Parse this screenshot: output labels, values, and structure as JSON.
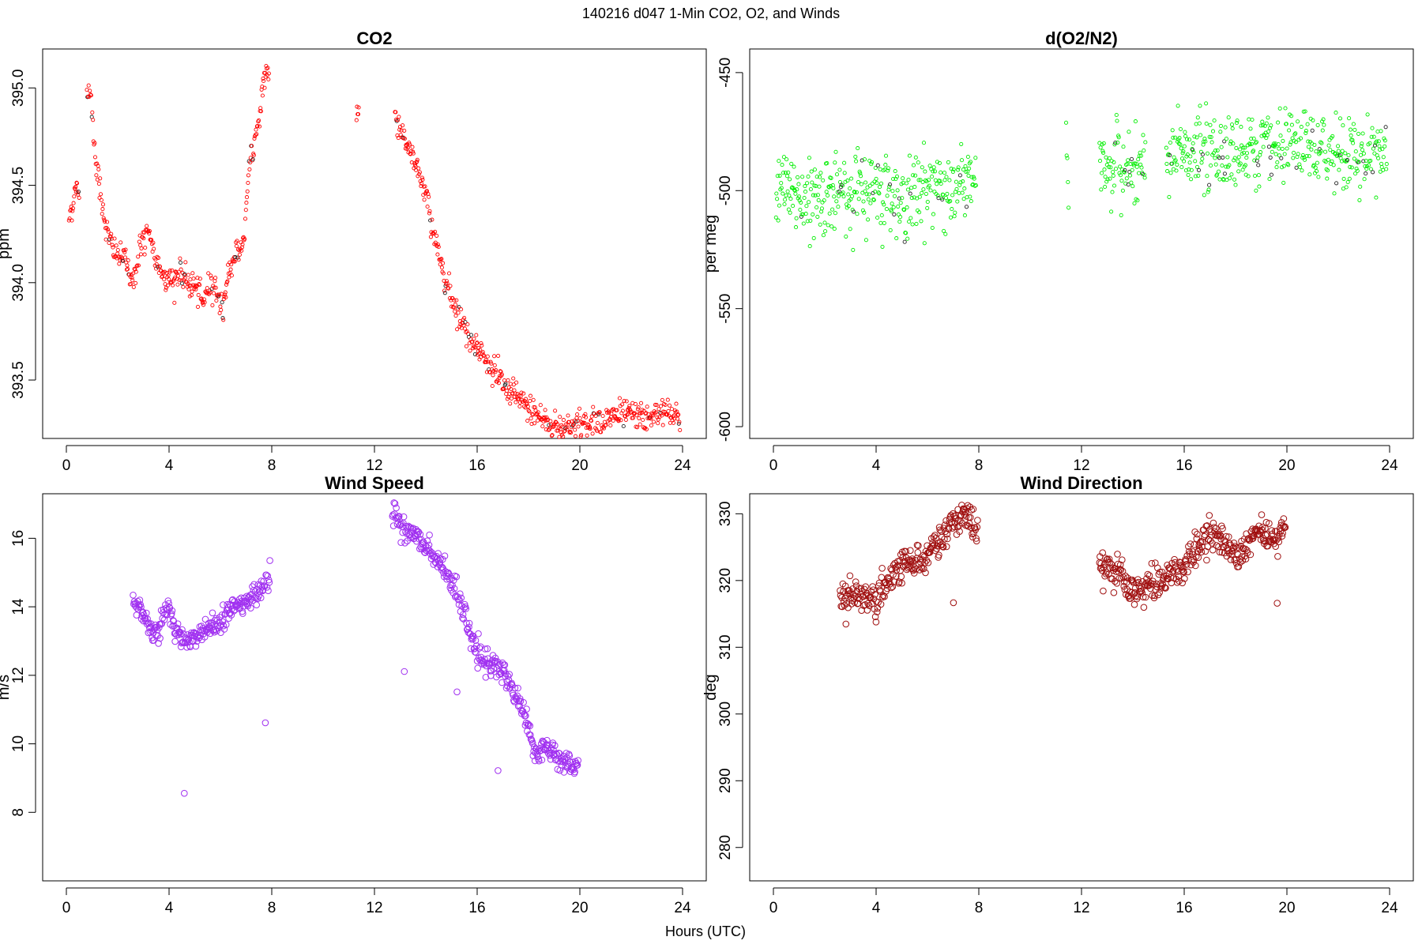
{
  "figure": {
    "title": "140216   d047   1-Min CO2, O2, and Winds",
    "shared_xlabel": "Hours (UTC)"
  },
  "chart_data": [
    {
      "id": "co2",
      "type": "scatter",
      "title": "CO2",
      "xlabel": "",
      "ylabel": "ppm",
      "xlim": [
        0,
        24
      ],
      "ylim": [
        393.2,
        395.2
      ],
      "xticks": [
        0,
        4,
        8,
        12,
        16,
        20,
        24
      ],
      "yticks": [
        393.5,
        394.0,
        394.5,
        395.0
      ],
      "ytick_labels": [
        "393.5",
        "394.0",
        "394.5",
        "395.0"
      ],
      "marker_color": "#ff0000",
      "marker_size": "small",
      "series": [
        {
          "segments": [
            {
              "start": 0.1,
              "end": 0.5,
              "pts": [
                [
                  0.1,
                  394.33
                ],
                [
                  0.2,
                  394.38
                ],
                [
                  0.3,
                  394.45
                ],
                [
                  0.4,
                  394.47
                ],
                [
                  0.5,
                  394.48
                ]
              ]
            },
            {
              "start": 0.8,
              "end": 7.9,
              "pts": [
                [
                  0.8,
                  394.95
                ],
                [
                  0.9,
                  395.02
                ],
                [
                  1.0,
                  394.88
                ],
                [
                  1.1,
                  394.7
                ],
                [
                  1.2,
                  394.58
                ],
                [
                  1.4,
                  394.4
                ],
                [
                  1.6,
                  394.25
                ],
                [
                  1.8,
                  394.18
                ],
                [
                  2.0,
                  394.14
                ],
                [
                  2.3,
                  394.12
                ],
                [
                  2.6,
                  394.0
                ],
                [
                  2.9,
                  394.2
                ],
                [
                  3.2,
                  394.25
                ],
                [
                  3.5,
                  394.1
                ],
                [
                  3.8,
                  394.05
                ],
                [
                  4.1,
                  394.0
                ],
                [
                  4.4,
                  394.05
                ],
                [
                  4.7,
                  394.0
                ],
                [
                  5.0,
                  393.98
                ],
                [
                  5.3,
                  393.9
                ],
                [
                  5.6,
                  394.0
                ],
                [
                  5.9,
                  393.95
                ],
                [
                  6.1,
                  393.85
                ],
                [
                  6.3,
                  394.05
                ],
                [
                  6.6,
                  394.15
                ],
                [
                  6.9,
                  394.2
                ],
                [
                  7.1,
                  394.55
                ],
                [
                  7.3,
                  394.7
                ],
                [
                  7.5,
                  394.85
                ],
                [
                  7.7,
                  395.05
                ],
                [
                  7.9,
                  395.1
                ]
              ]
            },
            {
              "start": 11.3,
              "end": 11.4,
              "pts": [
                [
                  11.3,
                  394.85
                ],
                [
                  11.4,
                  394.9
                ]
              ]
            },
            {
              "start": 12.8,
              "end": 23.9,
              "pts": [
                [
                  12.8,
                  394.85
                ],
                [
                  13.0,
                  394.8
                ],
                [
                  13.3,
                  394.7
                ],
                [
                  13.6,
                  394.6
                ],
                [
                  13.9,
                  394.5
                ],
                [
                  14.1,
                  394.4
                ],
                [
                  14.3,
                  394.25
                ],
                [
                  14.5,
                  394.15
                ],
                [
                  14.8,
                  394.0
                ],
                [
                  15.1,
                  393.9
                ],
                [
                  15.4,
                  393.8
                ],
                [
                  15.7,
                  393.72
                ],
                [
                  16.0,
                  393.68
                ],
                [
                  16.3,
                  393.6
                ],
                [
                  16.6,
                  393.55
                ],
                [
                  16.9,
                  393.5
                ],
                [
                  17.2,
                  393.44
                ],
                [
                  17.5,
                  393.42
                ],
                [
                  17.8,
                  393.38
                ],
                [
                  18.1,
                  393.35
                ],
                [
                  18.4,
                  393.32
                ],
                [
                  18.7,
                  393.28
                ],
                [
                  19.0,
                  393.27
                ],
                [
                  19.3,
                  393.25
                ],
                [
                  19.6,
                  393.27
                ],
                [
                  19.9,
                  393.28
                ],
                [
                  20.2,
                  393.28
                ],
                [
                  20.5,
                  393.28
                ],
                [
                  20.8,
                  393.3
                ],
                [
                  21.1,
                  393.3
                ],
                [
                  21.4,
                  393.32
                ],
                [
                  21.7,
                  393.33
                ],
                [
                  22.0,
                  393.33
                ],
                [
                  22.3,
                  393.32
                ],
                [
                  22.6,
                  393.3
                ],
                [
                  22.9,
                  393.32
                ],
                [
                  23.2,
                  393.35
                ],
                [
                  23.5,
                  393.32
                ],
                [
                  23.8,
                  393.3
                ],
                [
                  23.9,
                  393.27
                ]
              ]
            }
          ]
        }
      ]
    },
    {
      "id": "o2",
      "type": "scatter",
      "title": "d(O2/N2)",
      "xlabel": "",
      "ylabel": "per meg",
      "xlim": [
        0,
        24
      ],
      "ylim": [
        -605,
        -440
      ],
      "xticks": [
        0,
        4,
        8,
        12,
        16,
        20,
        24
      ],
      "yticks": [
        -600,
        -550,
        -500,
        -450
      ],
      "ytick_labels": [
        "-600",
        "-550",
        "-500",
        "-450"
      ],
      "marker_color": "#00ee00",
      "marker_size": "small",
      "series": [
        {
          "segments": [
            {
              "start": 0.1,
              "end": 7.9,
              "pts": [
                [
                  0.1,
                  -500
                ],
                [
                  1.0,
                  -503
                ],
                [
                  2.0,
                  -502
                ],
                [
                  3.0,
                  -500
                ],
                [
                  4.0,
                  -500
                ],
                [
                  5.0,
                  -505
                ],
                [
                  6.0,
                  -498
                ],
                [
                  7.0,
                  -500
                ],
                [
                  7.9,
                  -495
                ]
              ]
            },
            {
              "start": 11.4,
              "end": 11.5,
              "pts": [
                [
                  11.4,
                  -492
                ],
                [
                  11.5,
                  -488
                ]
              ]
            },
            {
              "start": 12.7,
              "end": 14.5,
              "pts": [
                [
                  12.7,
                  -488
                ],
                [
                  13.5,
                  -490
                ],
                [
                  14.0,
                  -495
                ],
                [
                  14.5,
                  -490
                ]
              ]
            },
            {
              "start": 15.3,
              "end": 23.9,
              "pts": [
                [
                  15.3,
                  -486
                ],
                [
                  16.0,
                  -484
                ],
                [
                  17.0,
                  -484
                ],
                [
                  18.0,
                  -483
                ],
                [
                  19.0,
                  -481
                ],
                [
                  20.0,
                  -482
                ],
                [
                  21.0,
                  -483
                ],
                [
                  22.0,
                  -484
                ],
                [
                  23.0,
                  -485
                ],
                [
                  23.9,
                  -483
                ]
              ]
            }
          ]
        }
      ]
    },
    {
      "id": "wind_speed",
      "type": "scatter",
      "title": "Wind Speed",
      "xlabel": "",
      "ylabel": "m/s",
      "xlim": [
        0,
        24
      ],
      "ylim": [
        6.0,
        17.3
      ],
      "xticks": [
        0,
        4,
        8,
        12,
        16,
        20,
        24
      ],
      "yticks": [
        8,
        10,
        12,
        14,
        16
      ],
      "ytick_labels": [
        "8",
        "10",
        "12",
        "14",
        "16"
      ],
      "marker_color": "#a030f0",
      "marker_size": "large",
      "series": [
        {
          "segments": [
            {
              "start": 2.6,
              "end": 7.95,
              "pts": [
                [
                  2.6,
                  14.2
                ],
                [
                  3.0,
                  13.9
                ],
                [
                  3.3,
                  13.2
                ],
                [
                  3.6,
                  13.4
                ],
                [
                  4.0,
                  14.0
                ],
                [
                  4.3,
                  13.2
                ],
                [
                  4.7,
                  13.0
                ],
                [
                  5.0,
                  13.1
                ],
                [
                  5.5,
                  13.5
                ],
                [
                  6.0,
                  13.5
                ],
                [
                  6.5,
                  14.0
                ],
                [
                  7.0,
                  14.2
                ],
                [
                  7.5,
                  14.4
                ],
                [
                  7.95,
                  14.9
                ]
              ]
            },
            {
              "start": 12.7,
              "end": 19.95,
              "pts": [
                [
                  12.7,
                  16.8
                ],
                [
                  13.0,
                  16.4
                ],
                [
                  13.5,
                  16.1
                ],
                [
                  14.0,
                  15.8
                ],
                [
                  14.5,
                  15.3
                ],
                [
                  15.0,
                  14.7
                ],
                [
                  15.5,
                  13.8
                ],
                [
                  16.0,
                  12.6
                ],
                [
                  16.5,
                  12.3
                ],
                [
                  17.0,
                  12.1
                ],
                [
                  17.5,
                  11.5
                ],
                [
                  18.0,
                  10.5
                ],
                [
                  18.3,
                  9.6
                ],
                [
                  18.7,
                  10.0
                ],
                [
                  19.0,
                  9.7
                ],
                [
                  19.5,
                  9.4
                ],
                [
                  19.95,
                  9.3
                ]
              ]
            }
          ]
        }
      ]
    },
    {
      "id": "wind_direction",
      "type": "scatter",
      "title": "Wind Direction",
      "xlabel": "",
      "ylabel": "deg",
      "xlim": [
        0,
        24
      ],
      "ylim": [
        275,
        333
      ],
      "xticks": [
        0,
        4,
        8,
        12,
        16,
        20,
        24
      ],
      "yticks": [
        280,
        290,
        300,
        310,
        320,
        330
      ],
      "ytick_labels": [
        "280",
        "290",
        "300",
        "310",
        "320",
        "330"
      ],
      "marker_color": "#a01010",
      "marker_size": "large",
      "series": [
        {
          "segments": [
            {
              "start": 2.6,
              "end": 7.95,
              "pts": [
                [
                  2.6,
                  317
                ],
                [
                  3.0,
                  318
                ],
                [
                  3.5,
                  318
                ],
                [
                  4.0,
                  316
                ],
                [
                  4.5,
                  320
                ],
                [
                  5.0,
                  322
                ],
                [
                  5.5,
                  323
                ],
                [
                  6.0,
                  324
                ],
                [
                  6.5,
                  326
                ],
                [
                  7.0,
                  329
                ],
                [
                  7.5,
                  330
                ],
                [
                  7.95,
                  327
                ]
              ]
            },
            {
              "start": 12.7,
              "end": 19.95,
              "pts": [
                [
                  12.7,
                  321
                ],
                [
                  13.2,
                  322
                ],
                [
                  13.6,
                  320
                ],
                [
                  14.0,
                  318
                ],
                [
                  14.5,
                  319
                ],
                [
                  15.0,
                  320
                ],
                [
                  15.5,
                  321
                ],
                [
                  16.0,
                  322
                ],
                [
                  16.5,
                  325
                ],
                [
                  17.0,
                  327
                ],
                [
                  17.5,
                  326
                ],
                [
                  18.0,
                  324
                ],
                [
                  18.5,
                  326
                ],
                [
                  19.0,
                  328
                ],
                [
                  19.5,
                  326
                ],
                [
                  19.95,
                  329
                ]
              ]
            }
          ]
        }
      ]
    }
  ]
}
